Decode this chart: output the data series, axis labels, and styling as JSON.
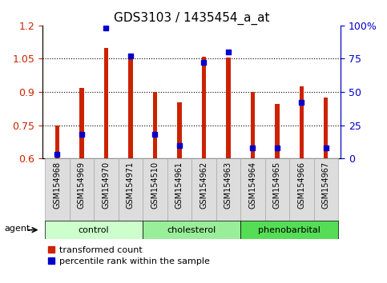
{
  "title": "GDS3103 / 1435454_a_at",
  "samples": [
    "GSM154968",
    "GSM154969",
    "GSM154970",
    "GSM154971",
    "GSM154510",
    "GSM154961",
    "GSM154962",
    "GSM154963",
    "GSM154964",
    "GSM154965",
    "GSM154966",
    "GSM154967"
  ],
  "red_values": [
    0.75,
    0.92,
    1.1,
    1.047,
    0.9,
    0.855,
    1.06,
    1.055,
    0.9,
    0.845,
    0.925,
    0.875
  ],
  "blue_values_pct": [
    3,
    18,
    98,
    77,
    18,
    10,
    72,
    80,
    8,
    8,
    42,
    8
  ],
  "ylim_left": [
    0.6,
    1.2
  ],
  "ylim_right": [
    0,
    100
  ],
  "yticks_left": [
    0.6,
    0.75,
    0.9,
    1.05,
    1.2
  ],
  "yticks_right": [
    0,
    25,
    50,
    75,
    100
  ],
  "ytick_labels_right": [
    "0",
    "25",
    "50",
    "75",
    "100%"
  ],
  "groups": [
    {
      "name": "control",
      "start": 0,
      "end": 4,
      "color": "#ccffcc"
    },
    {
      "name": "cholesterol",
      "start": 4,
      "end": 8,
      "color": "#99ee99"
    },
    {
      "name": "phenobarbital",
      "start": 8,
      "end": 12,
      "color": "#55dd55"
    }
  ],
  "bar_color": "#cc2200",
  "dot_color": "#0000cc",
  "base_value": 0.6,
  "bar_width": 0.18,
  "agent_label": "agent",
  "legend_red": "transformed count",
  "legend_blue": "percentile rank within the sample",
  "bg_color": "#ffffff",
  "title_fontsize": 11,
  "tick_color_left": "#cc2200",
  "tick_color_right": "#0000cc",
  "tick_fontsize": 9,
  "sample_fontsize": 7,
  "xtick_bg_color": "#dddddd",
  "group_fontsize": 8,
  "legend_fontsize": 8
}
